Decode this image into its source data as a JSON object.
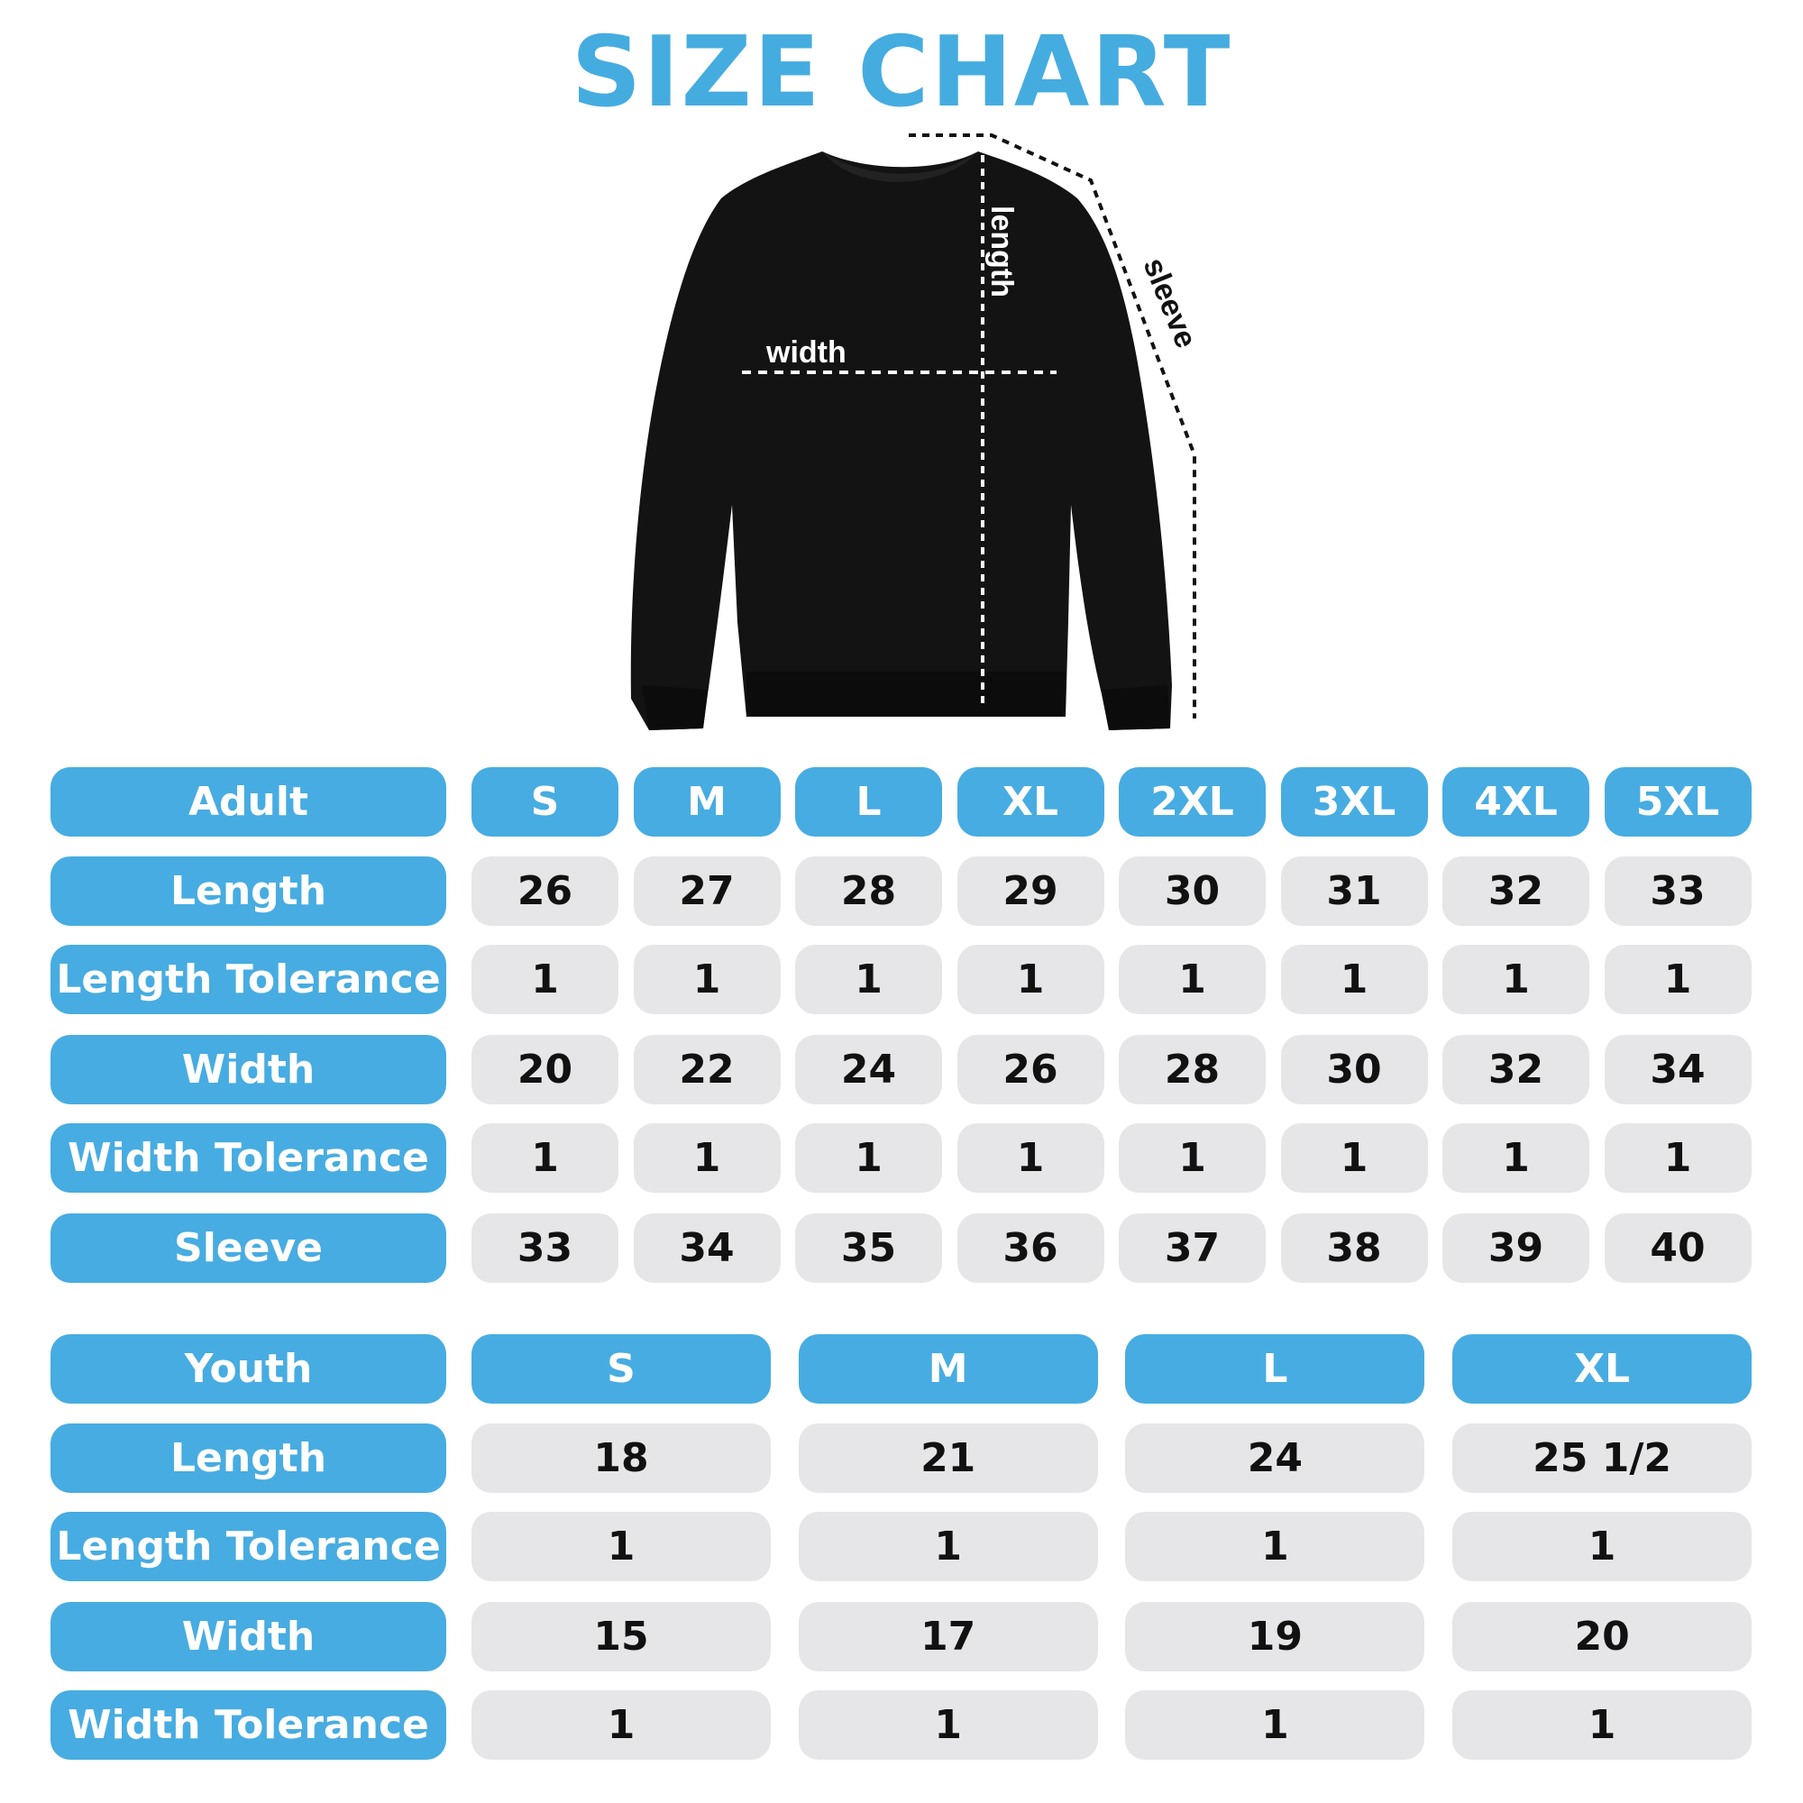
{
  "title": "SIZE CHART",
  "colors": {
    "accent": "#47ACE1",
    "cell_bg": "#E6E6E8",
    "shirt": "#111111"
  },
  "diagram": {
    "image": "black crewneck sweatshirt",
    "labels": {
      "width": "width",
      "length": "length",
      "sleeve": "sleeve"
    }
  },
  "adult": {
    "header": "Adult",
    "sizes": [
      "S",
      "M",
      "L",
      "XL",
      "2XL",
      "3XL",
      "4XL",
      "5XL"
    ],
    "rows": [
      {
        "label": "Length",
        "values": [
          "26",
          "27",
          "28",
          "29",
          "30",
          "31",
          "32",
          "33"
        ]
      },
      {
        "label": "Length Tolerance",
        "values": [
          "1",
          "1",
          "1",
          "1",
          "1",
          "1",
          "1",
          "1"
        ]
      },
      {
        "label": "Width",
        "values": [
          "20",
          "22",
          "24",
          "26",
          "28",
          "30",
          "32",
          "34"
        ]
      },
      {
        "label": "Width Tolerance",
        "values": [
          "1",
          "1",
          "1",
          "1",
          "1",
          "1",
          "1",
          "1"
        ]
      },
      {
        "label": "Sleeve",
        "values": [
          "33",
          "34",
          "35",
          "36",
          "37",
          "38",
          "39",
          "40"
        ]
      }
    ]
  },
  "youth": {
    "header": "Youth",
    "sizes": [
      "S",
      "M",
      "L",
      "XL"
    ],
    "rows": [
      {
        "label": "Length",
        "values": [
          "18",
          "21",
          "24",
          "25 1/2"
        ]
      },
      {
        "label": "Length Tolerance",
        "values": [
          "1",
          "1",
          "1",
          "1"
        ]
      },
      {
        "label": "Width",
        "values": [
          "15",
          "17",
          "19",
          "20"
        ]
      },
      {
        "label": "Width Tolerance",
        "values": [
          "1",
          "1",
          "1",
          "1"
        ]
      }
    ]
  }
}
